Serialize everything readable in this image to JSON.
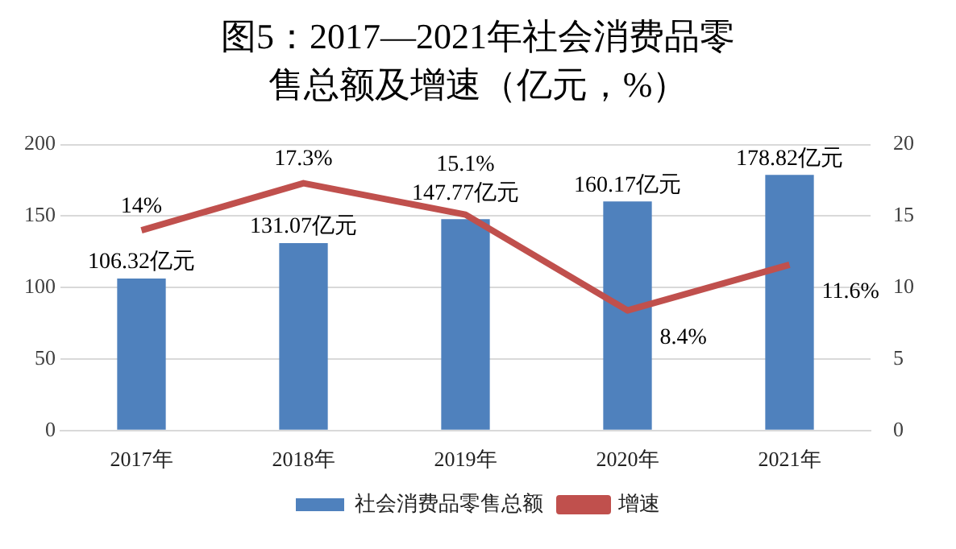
{
  "chart_data": {
    "type": "bar",
    "title": "图5：2017—2021年社会消费品零售总额及增速（亿元，%）",
    "categories": [
      "2017年",
      "2018年",
      "2019年",
      "2020年",
      "2021年"
    ],
    "series": [
      {
        "name": "社会消费品零售总额",
        "color": "#4f81bd",
        "values": [
          106.32,
          131.07,
          147.77,
          160.17,
          178.82
        ],
        "value_labels": [
          "106.32亿元",
          "131.07亿元",
          "147.77亿元",
          "160.17亿元",
          "178.82亿元"
        ]
      },
      {
        "name": "增速",
        "type": "line",
        "axis": "y2",
        "color": "#c0504d",
        "values": [
          14,
          17.3,
          15.1,
          8.4,
          11.6
        ],
        "value_labels": [
          "14%",
          "17.3%",
          "15.1%",
          "8.4%",
          "11.6%"
        ]
      }
    ],
    "ylim": [
      0,
      200
    ],
    "yticks": [
      0,
      50,
      100,
      150,
      200
    ],
    "y2lim": [
      0,
      20
    ],
    "y2ticks": [
      0,
      5,
      10,
      15,
      20
    ],
    "grid": "y",
    "legend": "bottom",
    "marker": "none",
    "line_style": "solid"
  }
}
